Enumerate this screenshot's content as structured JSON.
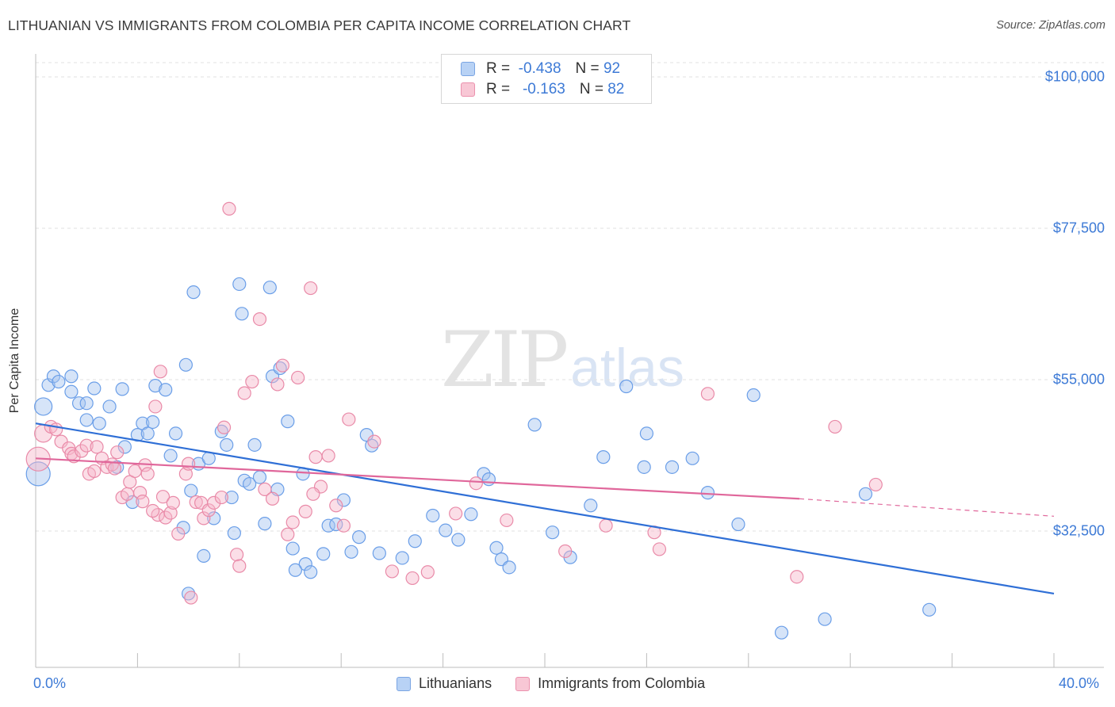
{
  "header": {
    "title": "LITHUANIAN VS IMMIGRANTS FROM COLOMBIA PER CAPITA INCOME CORRELATION CHART",
    "source": "Source: ZipAtlas.com"
  },
  "watermark": {
    "zip": "ZIP",
    "atlas": "atlas"
  },
  "legend": {
    "rows": [
      {
        "r_label": "R =",
        "r_value": "-0.438",
        "n_label": "N =",
        "n_value": "92",
        "color": "#b8d2f5"
      },
      {
        "r_label": "R =",
        "r_value": "-0.163",
        "n_label": "N =",
        "n_value": "82",
        "color": "#f8c7d5"
      }
    ]
  },
  "bottom_legend": {
    "series1": "Lithuanians",
    "series2": "Immigrants from Colombia"
  },
  "chart_data": {
    "type": "scatter",
    "title": "LITHUANIAN VS IMMIGRANTS FROM COLOMBIA PER CAPITA INCOME CORRELATION CHART",
    "xlabel": "",
    "ylabel": "Per Capita Income",
    "x_tick_labels": [
      "0.0%",
      "40.0%"
    ],
    "y_tick_labels": [
      "$100,000",
      "$77,500",
      "$55,000",
      "$32,500"
    ],
    "y_ticks": [
      100000,
      77500,
      55000,
      32500
    ],
    "xlim": [
      0,
      40
    ],
    "ylim": [
      13000,
      102000
    ],
    "series": [
      {
        "name": "Lithuanians",
        "color": "#6a9ee8",
        "fill": "rgba(165,196,240,0.45)",
        "trend": {
          "x": [
            0,
            40
          ],
          "y": [
            48500,
            23200
          ],
          "color": "#2f6fd6",
          "dashed_from": null
        },
        "points": [
          [
            0.3,
            51000,
            11
          ],
          [
            0.5,
            54200,
            8
          ],
          [
            0.7,
            55500,
            8
          ],
          [
            0.9,
            54700,
            8
          ],
          [
            1.4,
            55500,
            8
          ],
          [
            1.4,
            53200,
            8
          ],
          [
            1.7,
            51500,
            8
          ],
          [
            2.0,
            51500,
            8
          ],
          [
            2.3,
            53700,
            8
          ],
          [
            2.0,
            49000,
            8
          ],
          [
            2.5,
            48500,
            8
          ],
          [
            2.9,
            51000,
            8
          ],
          [
            3.4,
            53600,
            8
          ],
          [
            3.5,
            45000,
            8
          ],
          [
            3.2,
            42000,
            8
          ],
          [
            3.8,
            36800,
            8
          ],
          [
            4.0,
            46800,
            8
          ],
          [
            4.2,
            48500,
            8
          ],
          [
            4.4,
            47000,
            8
          ],
          [
            4.6,
            48700,
            8
          ],
          [
            4.7,
            54100,
            8
          ],
          [
            5.1,
            53500,
            8
          ],
          [
            5.3,
            43700,
            8
          ],
          [
            5.5,
            47000,
            8
          ],
          [
            5.9,
            57200,
            8
          ],
          [
            5.8,
            33000,
            8
          ],
          [
            6.1,
            38500,
            8
          ],
          [
            6.2,
            68000,
            8
          ],
          [
            6.4,
            42500,
            8
          ],
          [
            6.6,
            28800,
            8
          ],
          [
            6.8,
            43300,
            8
          ],
          [
            7.0,
            34400,
            8
          ],
          [
            7.3,
            47300,
            8
          ],
          [
            7.5,
            45300,
            8
          ],
          [
            7.7,
            37500,
            8
          ],
          [
            7.8,
            32200,
            8
          ],
          [
            8.0,
            69200,
            8
          ],
          [
            8.1,
            64800,
            8
          ],
          [
            8.2,
            40000,
            8
          ],
          [
            8.4,
            39500,
            8
          ],
          [
            8.6,
            45300,
            8
          ],
          [
            8.8,
            40500,
            8
          ],
          [
            9.0,
            33600,
            8
          ],
          [
            9.2,
            68700,
            8
          ],
          [
            9.3,
            55500,
            8
          ],
          [
            9.5,
            38700,
            8
          ],
          [
            9.6,
            56700,
            8
          ],
          [
            9.9,
            48800,
            8
          ],
          [
            10.1,
            29900,
            8
          ],
          [
            10.5,
            41000,
            8
          ],
          [
            10.6,
            27600,
            8
          ],
          [
            10.8,
            26400,
            8
          ],
          [
            11.3,
            29100,
            8
          ],
          [
            11.5,
            33300,
            8
          ],
          [
            11.8,
            33500,
            8
          ],
          [
            12.1,
            37100,
            8
          ],
          [
            12.4,
            29400,
            8
          ],
          [
            12.7,
            31600,
            8
          ],
          [
            13.0,
            46800,
            8
          ],
          [
            13.2,
            45200,
            8
          ],
          [
            13.5,
            29200,
            8
          ],
          [
            14.4,
            28500,
            8
          ],
          [
            14.9,
            31000,
            8
          ],
          [
            15.6,
            34800,
            8
          ],
          [
            16.1,
            32600,
            8
          ],
          [
            16.6,
            31200,
            8
          ],
          [
            17.1,
            35000,
            8
          ],
          [
            17.6,
            41000,
            8
          ],
          [
            17.8,
            40200,
            8
          ],
          [
            18.1,
            30000,
            8
          ],
          [
            18.3,
            28300,
            8
          ],
          [
            18.6,
            27100,
            8
          ],
          [
            19.6,
            48300,
            8
          ],
          [
            20.3,
            32300,
            8
          ],
          [
            21.0,
            28600,
            8
          ],
          [
            21.8,
            36300,
            8
          ],
          [
            22.3,
            43500,
            8
          ],
          [
            23.2,
            54000,
            8
          ],
          [
            23.9,
            42000,
            8
          ],
          [
            24.0,
            47000,
            8
          ],
          [
            25.0,
            42000,
            8
          ],
          [
            25.8,
            43300,
            8
          ],
          [
            26.4,
            38200,
            8
          ],
          [
            27.6,
            33500,
            8
          ],
          [
            28.2,
            52700,
            8
          ],
          [
            29.3,
            17400,
            8
          ],
          [
            31.0,
            19400,
            8
          ],
          [
            32.6,
            38000,
            8
          ],
          [
            35.1,
            20800,
            8
          ],
          [
            10.2,
            26700,
            8
          ],
          [
            0.1,
            41000,
            15
          ],
          [
            6.0,
            23200,
            8
          ]
        ]
      },
      {
        "name": "Immigrants from Colombia",
        "color": "#e98aa8",
        "fill": "rgba(246,182,201,0.45)",
        "trend": {
          "x": [
            0,
            30
          ],
          "y": [
            43300,
            37300
          ],
          "color": "#e0679b",
          "dashed_to": 40,
          "dashed_end_y": 34700
        },
        "points": [
          [
            0.3,
            47000,
            11
          ],
          [
            0.6,
            48000,
            8
          ],
          [
            0.8,
            47600,
            8
          ],
          [
            1.0,
            45800,
            8
          ],
          [
            1.3,
            44800,
            8
          ],
          [
            1.4,
            44000,
            8
          ],
          [
            1.5,
            43600,
            8
          ],
          [
            1.8,
            44400,
            8
          ],
          [
            2.0,
            45200,
            8
          ],
          [
            2.1,
            41000,
            8
          ],
          [
            2.3,
            41400,
            8
          ],
          [
            2.4,
            45000,
            8
          ],
          [
            2.6,
            43300,
            8
          ],
          [
            2.8,
            42000,
            8
          ],
          [
            3.0,
            42400,
            8
          ],
          [
            3.1,
            41800,
            8
          ],
          [
            3.2,
            44200,
            8
          ],
          [
            3.4,
            37500,
            8
          ],
          [
            3.6,
            38000,
            8
          ],
          [
            3.7,
            39800,
            8
          ],
          [
            3.9,
            41400,
            8
          ],
          [
            4.1,
            38200,
            8
          ],
          [
            4.2,
            36900,
            8
          ],
          [
            4.3,
            42300,
            8
          ],
          [
            4.4,
            41000,
            8
          ],
          [
            4.7,
            51000,
            8
          ],
          [
            4.8,
            34900,
            8
          ],
          [
            4.9,
            56200,
            8
          ],
          [
            5.0,
            37600,
            8
          ],
          [
            5.1,
            34500,
            8
          ],
          [
            5.3,
            35200,
            8
          ],
          [
            5.4,
            36700,
            8
          ],
          [
            5.6,
            32100,
            8
          ],
          [
            5.9,
            41000,
            8
          ],
          [
            6.0,
            42500,
            8
          ],
          [
            6.3,
            36800,
            8
          ],
          [
            6.5,
            36700,
            8
          ],
          [
            6.6,
            34400,
            8
          ],
          [
            6.8,
            35600,
            8
          ],
          [
            7.0,
            36700,
            8
          ],
          [
            7.3,
            37500,
            8
          ],
          [
            7.4,
            47900,
            8
          ],
          [
            7.6,
            80400,
            8
          ],
          [
            7.9,
            29000,
            8
          ],
          [
            8.0,
            27300,
            8
          ],
          [
            8.2,
            53000,
            8
          ],
          [
            8.5,
            54700,
            8
          ],
          [
            8.8,
            64000,
            8
          ],
          [
            9.0,
            38700,
            8
          ],
          [
            9.3,
            37300,
            8
          ],
          [
            9.5,
            54300,
            8
          ],
          [
            9.7,
            57100,
            8
          ],
          [
            9.9,
            32000,
            8
          ],
          [
            10.1,
            33800,
            8
          ],
          [
            10.3,
            55300,
            8
          ],
          [
            10.6,
            35400,
            8
          ],
          [
            10.8,
            68600,
            8
          ],
          [
            11.0,
            43500,
            8
          ],
          [
            11.2,
            39100,
            8
          ],
          [
            11.5,
            43700,
            8
          ],
          [
            11.8,
            36300,
            8
          ],
          [
            12.1,
            33300,
            8
          ],
          [
            12.3,
            49100,
            8
          ],
          [
            13.3,
            45800,
            8
          ],
          [
            14.0,
            26500,
            8
          ],
          [
            14.8,
            25500,
            8
          ],
          [
            15.4,
            26400,
            8
          ],
          [
            16.5,
            35100,
            8
          ],
          [
            17.3,
            39600,
            8
          ],
          [
            18.5,
            34100,
            8
          ],
          [
            20.8,
            29500,
            8
          ],
          [
            22.4,
            33300,
            8
          ],
          [
            24.3,
            32300,
            8
          ],
          [
            24.5,
            29800,
            8
          ],
          [
            26.4,
            52900,
            8
          ],
          [
            29.9,
            25700,
            8
          ],
          [
            31.4,
            48000,
            8
          ],
          [
            33.0,
            39400,
            8
          ],
          [
            6.1,
            22600,
            8
          ],
          [
            4.6,
            35500,
            8
          ],
          [
            0.1,
            43200,
            15
          ],
          [
            10.9,
            38000,
            8
          ]
        ]
      }
    ]
  }
}
